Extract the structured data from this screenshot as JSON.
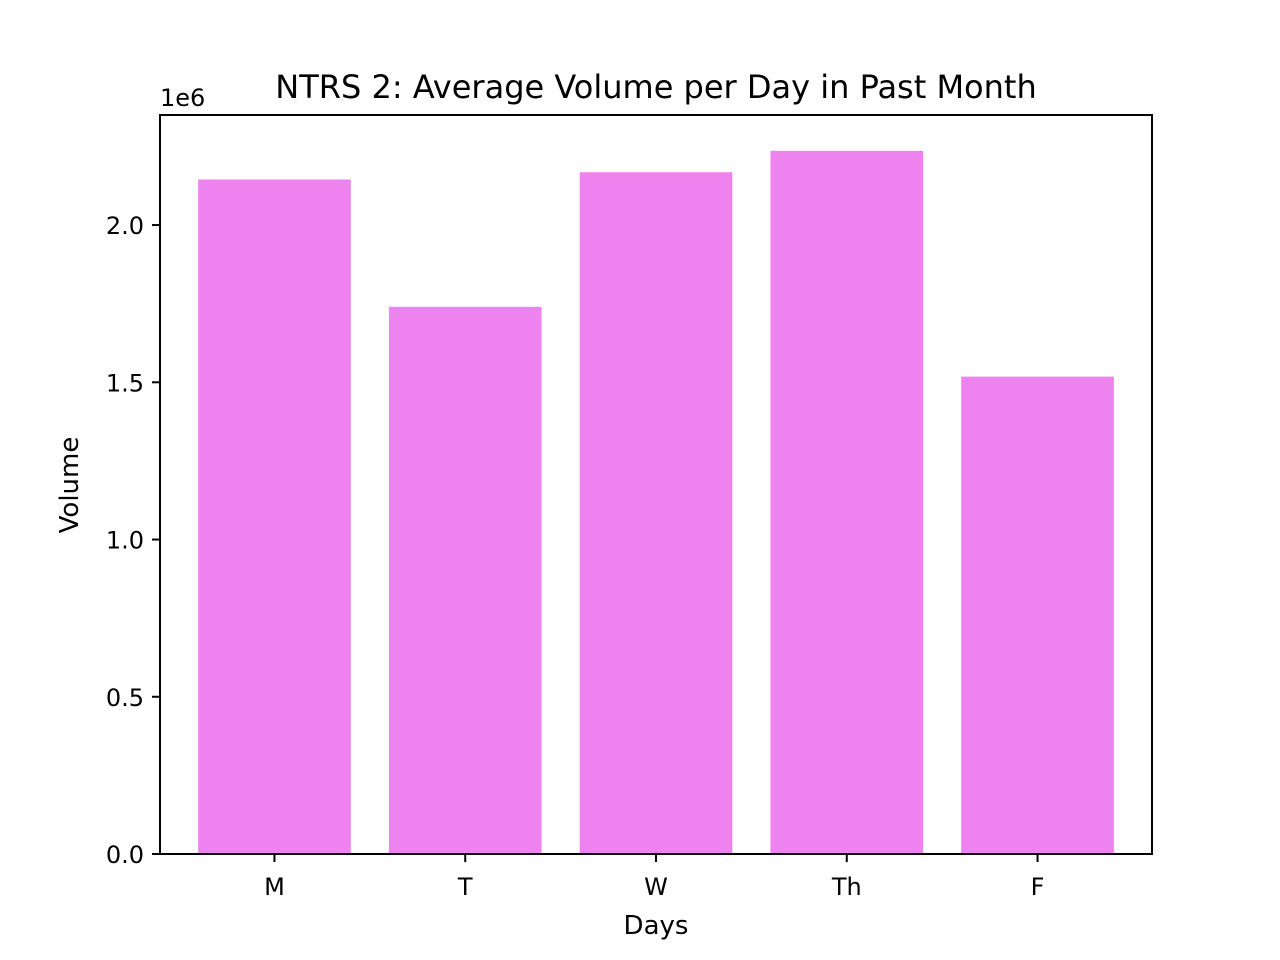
{
  "chart_data": {
    "type": "bar",
    "title": "NTRS 2: Average Volume per Day in Past Month",
    "xlabel": "Days",
    "ylabel": "Volume",
    "offset_text": "1e6",
    "categories": [
      "M",
      "T",
      "W",
      "Th",
      "F"
    ],
    "values": [
      2145000,
      1740000,
      2168000,
      2236000,
      1518000
    ],
    "ylim": [
      0,
      2350000
    ],
    "yticks": [
      {
        "value": 0,
        "label": "0.0"
      },
      {
        "value": 500000,
        "label": "0.5"
      },
      {
        "value": 1000000,
        "label": "1.0"
      },
      {
        "value": 1500000,
        "label": "1.5"
      },
      {
        "value": 2000000,
        "label": "2.0"
      }
    ],
    "bar_color": "#ee82ee",
    "grid": false,
    "legend": "none"
  }
}
